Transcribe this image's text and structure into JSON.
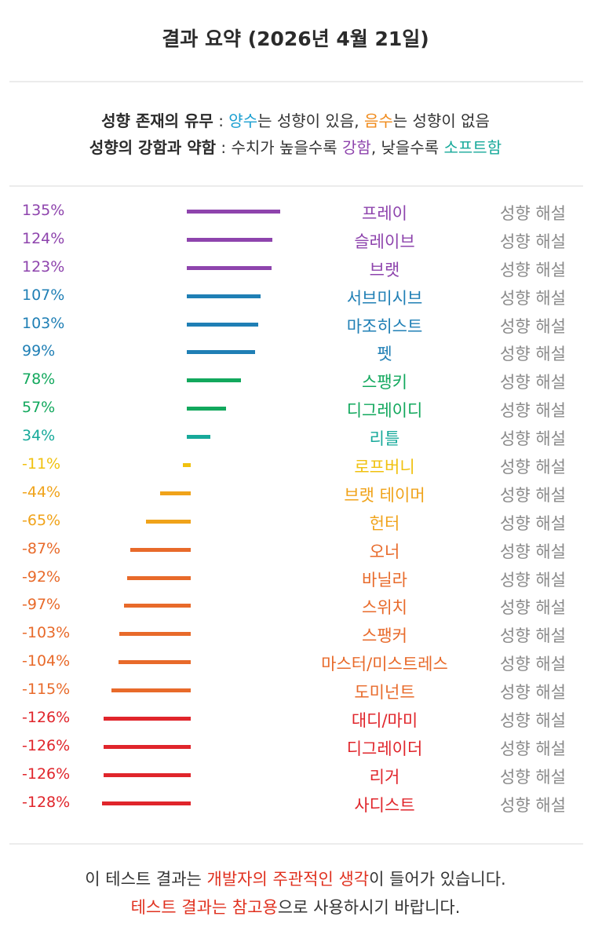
{
  "header": {
    "title": "결과 요약 (2026년 4월 21일)"
  },
  "legend": {
    "line1": {
      "label": "성향 존재의 유무",
      "sep": " : ",
      "positive": "양수",
      "positive_text": "는 성향이 있음, ",
      "negative": "음수",
      "negative_text": "는 성향이 없음"
    },
    "line2": {
      "label": "성향의 강함과 약함",
      "sep": " : 수치가 높을수록 ",
      "strong": "강함",
      "middle": ", 낮을수록 ",
      "soft": "소프트함"
    },
    "colors": {
      "positive": "#1a9fd1",
      "negative": "#f08a1a",
      "strong": "#8e44ad",
      "soft": "#17a99a"
    }
  },
  "results": [
    {
      "percent": "135%",
      "value": 135,
      "name": "프레이",
      "link": "성향 해설",
      "color": "#8e44ad"
    },
    {
      "percent": "124%",
      "value": 124,
      "name": "슬레이브",
      "link": "성향 해설",
      "color": "#8e44ad"
    },
    {
      "percent": "123%",
      "value": 123,
      "name": "브랫",
      "link": "성향 해설",
      "color": "#8e44ad"
    },
    {
      "percent": "107%",
      "value": 107,
      "name": "서브미시브",
      "link": "성향 해설",
      "color": "#1f7fb5"
    },
    {
      "percent": "103%",
      "value": 103,
      "name": "마조히스트",
      "link": "성향 해설",
      "color": "#1f7fb5"
    },
    {
      "percent": "99%",
      "value": 99,
      "name": "펫",
      "link": "성향 해설",
      "color": "#1f7fb5"
    },
    {
      "percent": "78%",
      "value": 78,
      "name": "스팽키",
      "link": "성향 해설",
      "color": "#12a85d"
    },
    {
      "percent": "57%",
      "value": 57,
      "name": "디그레이디",
      "link": "성향 해설",
      "color": "#12a85d"
    },
    {
      "percent": "34%",
      "value": 34,
      "name": "리틀",
      "link": "성향 해설",
      "color": "#17a99a"
    },
    {
      "percent": "-11%",
      "value": -11,
      "name": "로프버니",
      "link": "성향 해설",
      "color": "#f0c10f"
    },
    {
      "percent": "-44%",
      "value": -44,
      "name": "브랫 테이머",
      "link": "성향 해설",
      "color": "#f0a31a"
    },
    {
      "percent": "-65%",
      "value": -65,
      "name": "헌터",
      "link": "성향 해설",
      "color": "#f0a31a"
    },
    {
      "percent": "-87%",
      "value": -87,
      "name": "오너",
      "link": "성향 해설",
      "color": "#e86a2a"
    },
    {
      "percent": "-92%",
      "value": -92,
      "name": "바닐라",
      "link": "성향 해설",
      "color": "#e86a2a"
    },
    {
      "percent": "-97%",
      "value": -97,
      "name": "스위치",
      "link": "성향 해설",
      "color": "#e86a2a"
    },
    {
      "percent": "-103%",
      "value": -103,
      "name": "스팽커",
      "link": "성향 해설",
      "color": "#e86a2a"
    },
    {
      "percent": "-104%",
      "value": -104,
      "name": "마스터/미스트레스",
      "link": "성향 해설",
      "color": "#e86a2a"
    },
    {
      "percent": "-115%",
      "value": -115,
      "name": "도미넌트",
      "link": "성향 해설",
      "color": "#e86a2a"
    },
    {
      "percent": "-126%",
      "value": -126,
      "name": "대디/마미",
      "link": "성향 해설",
      "color": "#e0252b"
    },
    {
      "percent": "-126%",
      "value": -126,
      "name": "디그레이더",
      "link": "성향 해설",
      "color": "#e0252b"
    },
    {
      "percent": "-126%",
      "value": -126,
      "name": "리거",
      "link": "성향 해설",
      "color": "#e0252b"
    },
    {
      "percent": "-128%",
      "value": -128,
      "name": "사디스트",
      "link": "성향 해설",
      "color": "#e0252b"
    }
  ],
  "footer": {
    "line1_a": "이 테스트 결과는 ",
    "line1_b": "개발자의 주관적인 생각",
    "line1_c": "이 들어가 있습니다.",
    "line2_a": "테스트 결과는 참고용",
    "line2_b": "으로 사용하시기 바랍니다."
  }
}
